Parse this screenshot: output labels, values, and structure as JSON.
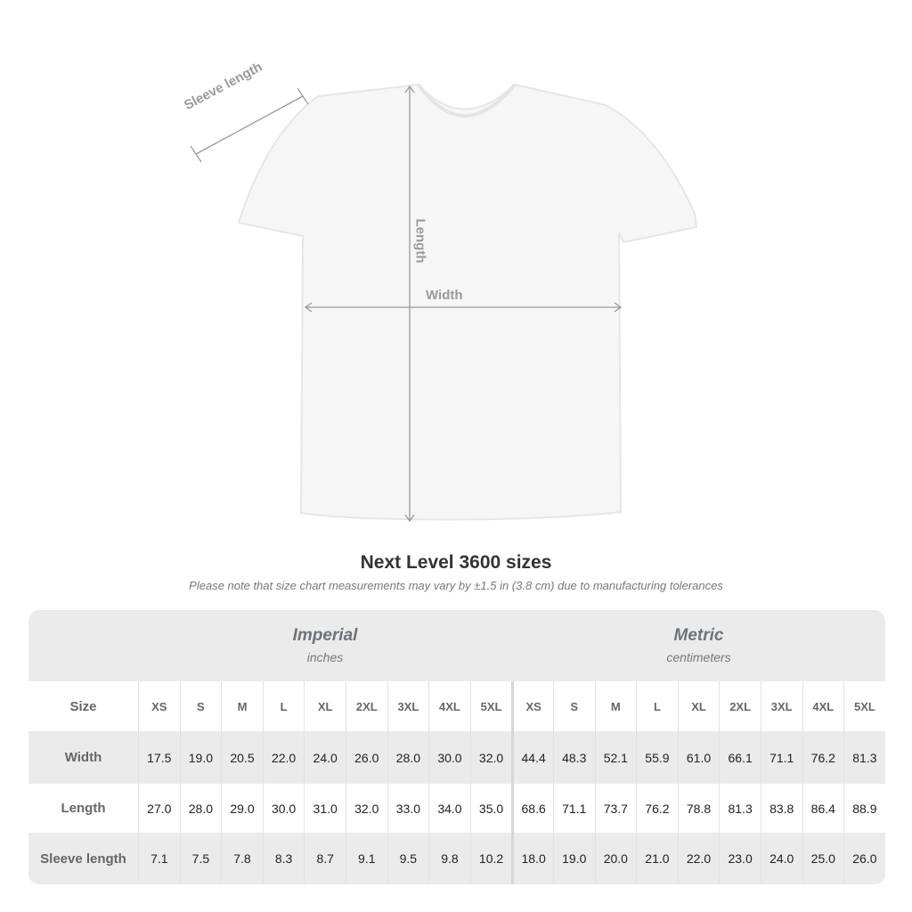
{
  "diagram": {
    "labels": {
      "sleeve": "Sleeve length",
      "length": "Length",
      "width": "Width"
    }
  },
  "title": "Next Level 3600 sizes",
  "note": "Please note that size chart measurements may vary by ±1.5 in (3.8 cm) due to manufacturing tolerances",
  "table": {
    "imperial": {
      "title": "Imperial",
      "unit": "inches"
    },
    "metric": {
      "title": "Metric",
      "unit": "centimeters"
    },
    "size_label": "Size",
    "sizes": [
      "XS",
      "S",
      "M",
      "L",
      "XL",
      "2XL",
      "3XL",
      "4XL",
      "5XL"
    ],
    "rows": [
      {
        "label": "Width",
        "imperial": [
          "17.5",
          "19.0",
          "20.5",
          "22.0",
          "24.0",
          "26.0",
          "28.0",
          "30.0",
          "32.0"
        ],
        "metric": [
          "44.4",
          "48.3",
          "52.1",
          "55.9",
          "61.0",
          "66.1",
          "71.1",
          "76.2",
          "81.3"
        ]
      },
      {
        "label": "Length",
        "imperial": [
          "27.0",
          "28.0",
          "29.0",
          "30.0",
          "31.0",
          "32.0",
          "33.0",
          "34.0",
          "35.0"
        ],
        "metric": [
          "68.6",
          "71.1",
          "73.7",
          "76.2",
          "78.8",
          "81.3",
          "83.8",
          "86.4",
          "88.9"
        ]
      },
      {
        "label": "Sleeve length",
        "imperial": [
          "7.1",
          "7.5",
          "7.8",
          "8.3",
          "8.7",
          "9.1",
          "9.5",
          "9.8",
          "10.2"
        ],
        "metric": [
          "18.0",
          "19.0",
          "20.0",
          "21.0",
          "22.0",
          "23.0",
          "24.0",
          "25.0",
          "26.0"
        ]
      }
    ]
  },
  "colors": {
    "table_bg": "#ebebeb",
    "header_text": "#707478"
  }
}
